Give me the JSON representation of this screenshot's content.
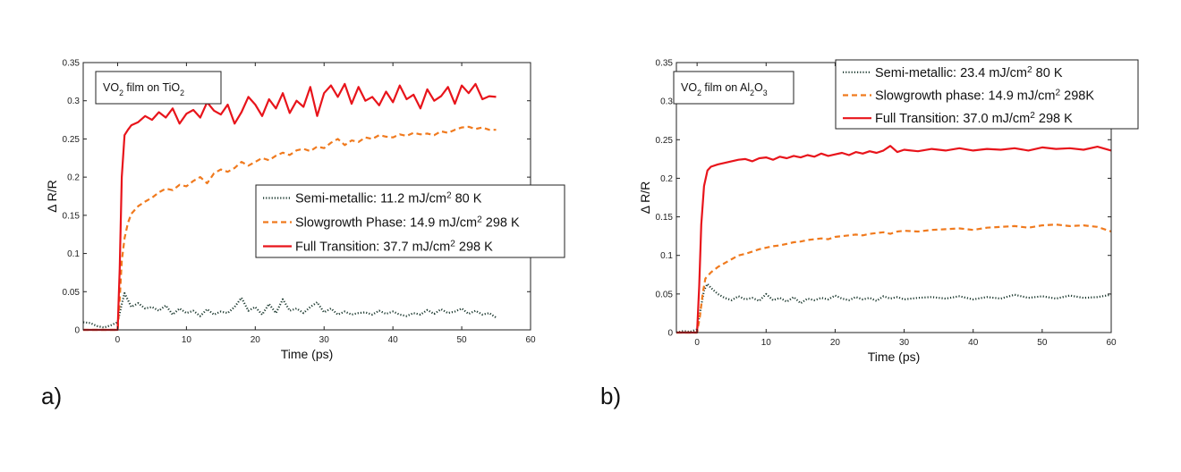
{
  "colors": {
    "semi": "#1d3a30",
    "slow": "#f07a1e",
    "full": "#e8141b"
  },
  "chart_data": [
    {
      "type": "line",
      "panel_label": "a)",
      "annotation": {
        "pre": "VO",
        "sub1": "2",
        "mid": " film on TiO",
        "sub2": "2"
      },
      "xlabel": "Time (ps)",
      "ylabel": "Δ R/R",
      "xlim": [
        -5,
        60
      ],
      "ylim": [
        0,
        0.35
      ],
      "xticks": [
        0,
        10,
        20,
        30,
        40,
        50,
        60
      ],
      "yticks": [
        0,
        0.05,
        0.1,
        0.15,
        0.2,
        0.25,
        0.3,
        0.35
      ],
      "ytick_labels": [
        "0",
        "0.05",
        "0.1",
        "0.15",
        "0.2",
        "0.25",
        "0.3",
        "0.35"
      ],
      "legend_placement": "center-right",
      "series": [
        {
          "key": "semi",
          "style": "dotted",
          "legend": {
            "text": "Semi-metallic: 11.2 mJ/cm",
            "sup": "2",
            "tail": " 80 K"
          },
          "x": [
            -5,
            -4,
            -3,
            -2,
            -1,
            0,
            0.5,
            1,
            2,
            3,
            4,
            5,
            6,
            7,
            8,
            9,
            10,
            11,
            12,
            13,
            14,
            15,
            16,
            17,
            18,
            19,
            20,
            21,
            22,
            23,
            24,
            25,
            26,
            27,
            28,
            29,
            30,
            31,
            32,
            33,
            34,
            35,
            36,
            37,
            38,
            39,
            40,
            41,
            42,
            43,
            44,
            45,
            46,
            47,
            48,
            49,
            50,
            51,
            52,
            53,
            54,
            55
          ],
          "y": [
            0.01,
            0.009,
            0.005,
            0.003,
            0.006,
            0.01,
            0.03,
            0.048,
            0.03,
            0.035,
            0.028,
            0.03,
            0.025,
            0.032,
            0.02,
            0.028,
            0.022,
            0.025,
            0.018,
            0.027,
            0.02,
            0.024,
            0.022,
            0.03,
            0.042,
            0.025,
            0.03,
            0.02,
            0.034,
            0.022,
            0.04,
            0.025,
            0.028,
            0.022,
            0.03,
            0.036,
            0.023,
            0.028,
            0.02,
            0.024,
            0.02,
            0.022,
            0.023,
            0.02,
            0.025,
            0.021,
            0.024,
            0.02,
            0.018,
            0.022,
            0.02,
            0.026,
            0.021,
            0.027,
            0.022,
            0.024,
            0.028,
            0.021,
            0.025,
            0.02,
            0.022,
            0.016
          ]
        },
        {
          "key": "slow",
          "style": "dashed",
          "legend": {
            "text": "Slowgrowth Phase: 14.9 mJ/cm",
            "sup": "2",
            "tail": " 298 K"
          },
          "x": [
            -5,
            -2,
            0,
            0.3,
            0.6,
            1,
            1.5,
            2,
            3,
            4,
            5,
            6,
            7,
            8,
            9,
            10,
            11,
            12,
            13,
            14,
            15,
            16,
            17,
            18,
            19,
            20,
            21,
            22,
            23,
            24,
            25,
            26,
            27,
            28,
            29,
            30,
            31,
            32,
            33,
            34,
            35,
            36,
            37,
            38,
            39,
            40,
            41,
            42,
            43,
            44,
            45,
            46,
            47,
            48,
            49,
            50,
            51,
            52,
            53,
            54,
            55
          ],
          "y": [
            0,
            0,
            0,
            0.04,
            0.09,
            0.12,
            0.14,
            0.152,
            0.162,
            0.168,
            0.173,
            0.18,
            0.185,
            0.183,
            0.19,
            0.188,
            0.195,
            0.2,
            0.192,
            0.205,
            0.21,
            0.207,
            0.212,
            0.22,
            0.215,
            0.22,
            0.225,
            0.222,
            0.228,
            0.232,
            0.229,
            0.235,
            0.237,
            0.234,
            0.24,
            0.238,
            0.245,
            0.25,
            0.242,
            0.248,
            0.246,
            0.252,
            0.25,
            0.255,
            0.253,
            0.252,
            0.256,
            0.254,
            0.258,
            0.256,
            0.257,
            0.255,
            0.26,
            0.258,
            0.262,
            0.265,
            0.266,
            0.263,
            0.265,
            0.262,
            0.262
          ]
        },
        {
          "key": "full",
          "style": "solid",
          "legend": {
            "text": "Full Transition: 37.7 mJ/cm",
            "sup": "2",
            "tail": " 298 K"
          },
          "x": [
            -5,
            -2,
            0,
            0.3,
            0.6,
            1,
            1.5,
            2,
            3,
            4,
            5,
            6,
            7,
            8,
            9,
            10,
            11,
            12,
            13,
            14,
            15,
            16,
            17,
            18,
            19,
            20,
            21,
            22,
            23,
            24,
            25,
            26,
            27,
            28,
            29,
            30,
            31,
            32,
            33,
            34,
            35,
            36,
            37,
            38,
            39,
            40,
            41,
            42,
            43,
            44,
            45,
            46,
            47,
            48,
            49,
            50,
            51,
            52,
            53,
            54,
            55
          ],
          "y": [
            0,
            0,
            0,
            0.08,
            0.2,
            0.255,
            0.262,
            0.268,
            0.272,
            0.28,
            0.275,
            0.285,
            0.278,
            0.29,
            0.27,
            0.283,
            0.288,
            0.278,
            0.298,
            0.287,
            0.282,
            0.295,
            0.27,
            0.285,
            0.305,
            0.295,
            0.28,
            0.302,
            0.29,
            0.31,
            0.284,
            0.3,
            0.292,
            0.318,
            0.28,
            0.31,
            0.32,
            0.305,
            0.322,
            0.296,
            0.318,
            0.3,
            0.305,
            0.294,
            0.312,
            0.298,
            0.32,
            0.302,
            0.308,
            0.29,
            0.315,
            0.3,
            0.306,
            0.318,
            0.296,
            0.32,
            0.31,
            0.322,
            0.302,
            0.306,
            0.305
          ]
        }
      ]
    },
    {
      "type": "line",
      "panel_label": "b)",
      "annotation": {
        "pre": "VO",
        "sub1": "2",
        "mid": " film on Al",
        "sub2": "2",
        "mid2": "O",
        "sub3": "3"
      },
      "xlabel": "Time (ps)",
      "ylabel": "Δ R/R",
      "xlim": [
        -3,
        60
      ],
      "ylim": [
        0,
        0.35
      ],
      "xticks": [
        0,
        10,
        20,
        30,
        40,
        50,
        60
      ],
      "yticks": [
        0,
        0.05,
        0.1,
        0.15,
        0.2,
        0.25,
        0.3,
        0.35
      ],
      "ytick_labels": [
        "0",
        "0.05",
        "0.1",
        "0.15",
        "0.2",
        "0.25",
        "0.3",
        "0.35"
      ],
      "legend_placement": "top-right",
      "series": [
        {
          "key": "semi",
          "style": "dotted",
          "legend": {
            "text": "Semi-metallic: 23.4 mJ/cm",
            "sup": "2",
            "tail": " 80 K"
          },
          "x": [
            -3,
            -2,
            -1,
            0,
            0.5,
            1,
            1.5,
            2,
            3,
            4,
            5,
            6,
            7,
            8,
            9,
            10,
            11,
            12,
            13,
            14,
            15,
            16,
            17,
            18,
            19,
            20,
            21,
            22,
            23,
            24,
            25,
            26,
            27,
            28,
            29,
            30,
            32,
            34,
            36,
            38,
            40,
            42,
            44,
            46,
            48,
            50,
            52,
            54,
            56,
            58,
            60
          ],
          "y": [
            0,
            0.002,
            0.001,
            0.004,
            0.03,
            0.055,
            0.063,
            0.058,
            0.05,
            0.045,
            0.042,
            0.047,
            0.043,
            0.045,
            0.041,
            0.05,
            0.042,
            0.045,
            0.04,
            0.046,
            0.038,
            0.044,
            0.042,
            0.045,
            0.043,
            0.048,
            0.044,
            0.042,
            0.046,
            0.043,
            0.045,
            0.041,
            0.047,
            0.044,
            0.046,
            0.043,
            0.045,
            0.046,
            0.044,
            0.047,
            0.043,
            0.046,
            0.044,
            0.049,
            0.045,
            0.047,
            0.044,
            0.048,
            0.045,
            0.046,
            0.049
          ]
        },
        {
          "key": "slow",
          "style": "dashed",
          "legend": {
            "text": "Slowgrowth phase: 14.9 mJ/cm",
            "sup": "2",
            "tail": " 298K"
          },
          "x": [
            -3,
            -1,
            0,
            0.4,
            0.8,
            1.2,
            2,
            3,
            4,
            5,
            6,
            7,
            8,
            9,
            10,
            11,
            12,
            13,
            14,
            15,
            16,
            17,
            18,
            19,
            20,
            21,
            22,
            23,
            24,
            25,
            26,
            27,
            28,
            29,
            30,
            32,
            34,
            36,
            38,
            40,
            42,
            44,
            46,
            48,
            50,
            52,
            54,
            56,
            58,
            60
          ],
          "y": [
            0,
            0,
            0,
            0.02,
            0.05,
            0.07,
            0.078,
            0.085,
            0.09,
            0.095,
            0.1,
            0.102,
            0.105,
            0.108,
            0.11,
            0.112,
            0.113,
            0.115,
            0.117,
            0.118,
            0.12,
            0.121,
            0.122,
            0.121,
            0.124,
            0.125,
            0.126,
            0.127,
            0.126,
            0.128,
            0.129,
            0.13,
            0.128,
            0.131,
            0.132,
            0.131,
            0.133,
            0.134,
            0.135,
            0.133,
            0.136,
            0.137,
            0.138,
            0.136,
            0.139,
            0.14,
            0.138,
            0.139,
            0.137,
            0.131
          ]
        },
        {
          "key": "full",
          "style": "solid",
          "legend": {
            "text": "Full Transition: 37.0 mJ/cm",
            "sup": "2",
            "tail": " 298 K"
          },
          "x": [
            -3,
            -1,
            0,
            0.3,
            0.6,
            1,
            1.5,
            2,
            3,
            4,
            5,
            6,
            7,
            8,
            9,
            10,
            11,
            12,
            13,
            14,
            15,
            16,
            17,
            18,
            19,
            20,
            21,
            22,
            23,
            24,
            25,
            26,
            27,
            28,
            29,
            30,
            32,
            34,
            36,
            38,
            40,
            42,
            44,
            46,
            48,
            50,
            52,
            54,
            56,
            58,
            60
          ],
          "y": [
            0,
            0,
            0,
            0.06,
            0.14,
            0.19,
            0.21,
            0.215,
            0.218,
            0.22,
            0.222,
            0.224,
            0.225,
            0.222,
            0.226,
            0.227,
            0.224,
            0.228,
            0.226,
            0.229,
            0.227,
            0.23,
            0.228,
            0.232,
            0.229,
            0.231,
            0.233,
            0.23,
            0.234,
            0.232,
            0.235,
            0.233,
            0.236,
            0.242,
            0.234,
            0.237,
            0.235,
            0.238,
            0.236,
            0.239,
            0.236,
            0.238,
            0.237,
            0.239,
            0.236,
            0.24,
            0.238,
            0.239,
            0.237,
            0.241,
            0.236
          ]
        }
      ]
    }
  ]
}
